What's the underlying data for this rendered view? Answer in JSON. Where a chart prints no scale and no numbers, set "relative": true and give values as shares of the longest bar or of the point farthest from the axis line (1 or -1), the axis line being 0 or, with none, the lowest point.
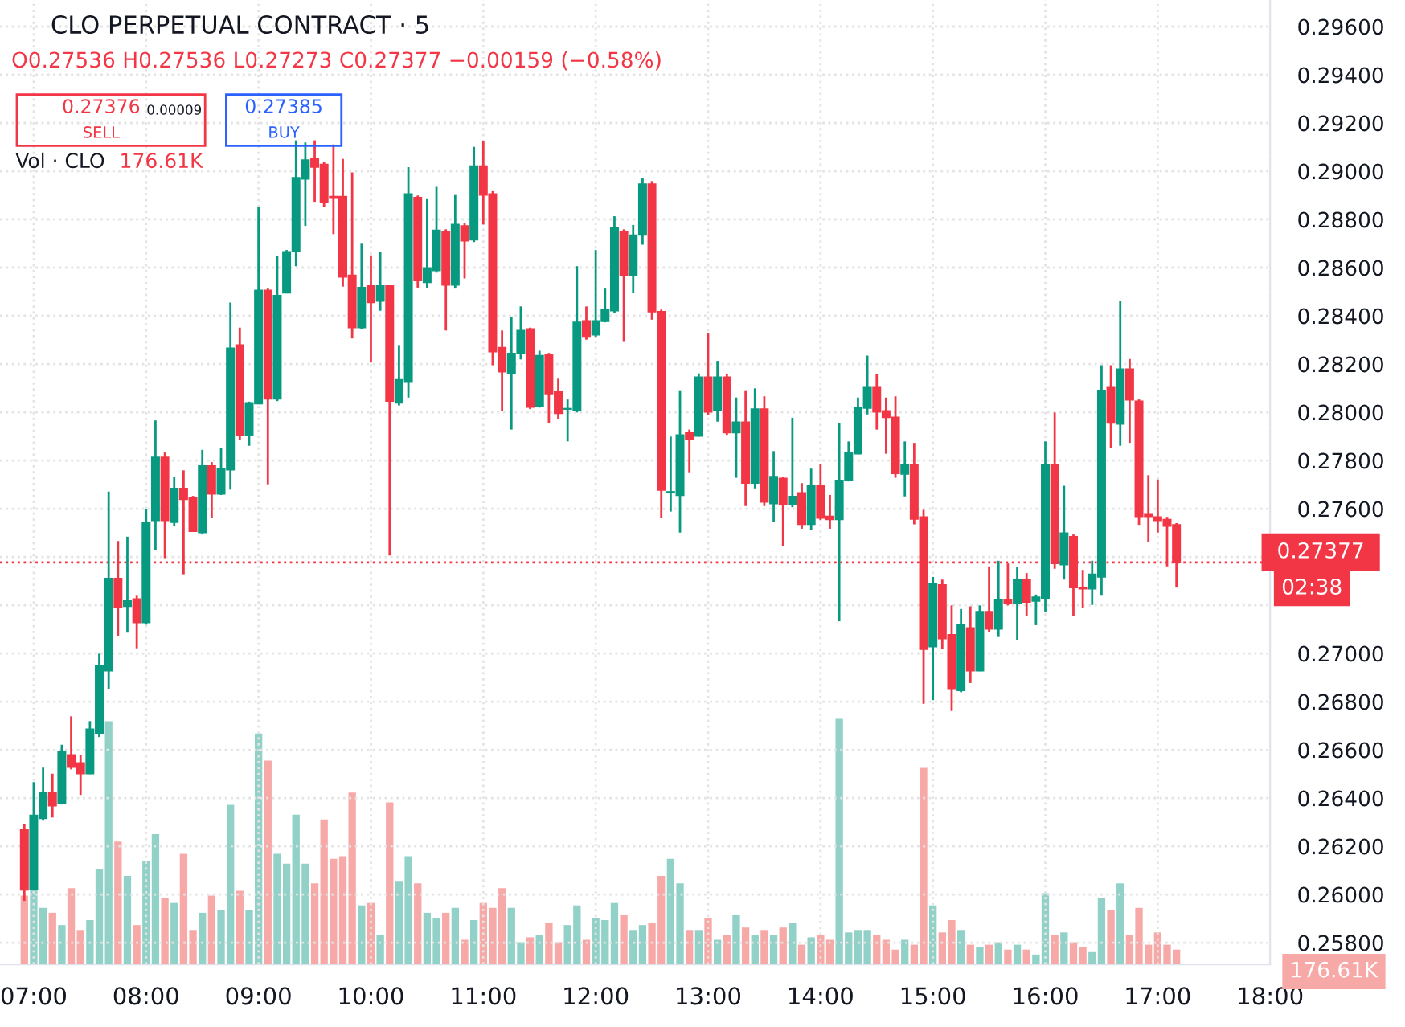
{
  "chart_data": [
    {
      "type": "candlestick",
      "title": "CLO PERPETUAL CONTRACT · 5",
      "subtitle": "O0.27536 H0.27536 L0.27273 C0.27377 −0.00159 (−0.58%)",
      "annotations": [
        "0.27376",
        "SELL",
        "0.00009",
        "0.27385",
        "BUY",
        "Vol · CLO",
        "176.61K",
        "02:38",
        "176.61K"
      ],
      "x": [
        6.9167,
        7,
        7.0833,
        7.1667,
        7.25,
        7.3333,
        7.4167,
        7.5,
        7.5833,
        7.6667,
        7.75,
        7.8333,
        7.9167,
        8,
        8.0833,
        8.1667,
        8.25,
        8.3333,
        8.4167,
        8.5,
        8.5833,
        8.6667,
        8.75,
        8.8333,
        8.9167,
        9,
        9.0833,
        9.1667,
        9.25,
        9.3333,
        9.4167,
        9.5,
        9.5833,
        9.6667,
        9.75,
        9.8333,
        9.9167,
        10,
        10.0833,
        10.1667,
        10.25,
        10.3333,
        10.4167,
        10.5,
        10.5833,
        10.6667,
        10.75,
        10.8333,
        10.9167,
        11,
        11.0833,
        11.1667,
        11.25,
        11.3333,
        11.4167,
        11.5,
        11.5833,
        11.6667,
        11.75,
        11.8333,
        11.9167,
        12,
        12.0833,
        12.1667,
        12.25,
        12.3333,
        12.4167,
        12.5,
        12.5833,
        12.6667,
        12.75,
        12.8333,
        12.9167,
        13,
        13.0833,
        13.1667,
        13.25,
        13.3333,
        13.4167,
        13.5,
        13.5833,
        13.6667,
        13.75,
        13.8333,
        13.9167,
        14,
        14.0833,
        14.1667,
        14.25,
        14.3333,
        14.4167,
        14.5,
        14.5833,
        14.6667,
        14.75,
        14.8333,
        14.9167,
        15,
        15.0833,
        15.1667,
        15.25,
        15.3333,
        15.4167,
        15.5,
        15.5833,
        15.6667,
        15.75,
        15.8333,
        15.9167,
        16,
        16.0833,
        16.1667,
        16.25,
        16.3333,
        16.4167,
        16.5,
        16.5833,
        16.6667,
        16.75,
        16.8333,
        16.9167,
        17,
        17.0833,
        17.1667
      ],
      "ohlc": [
        [
          0.26268,
          0.26293,
          0.25973,
          0.26019
        ],
        [
          0.26021,
          0.26466,
          0.26019,
          0.26328
        ],
        [
          0.26315,
          0.26526,
          0.26306,
          0.26421
        ],
        [
          0.26421,
          0.26501,
          0.26319,
          0.26368
        ],
        [
          0.26379,
          0.26621,
          0.26373,
          0.26593
        ],
        [
          0.26579,
          0.26739,
          0.26519,
          0.26528
        ],
        [
          0.26546,
          0.26579,
          0.26413,
          0.26501
        ],
        [
          0.26501,
          0.26719,
          0.26499,
          0.26686
        ],
        [
          0.26666,
          0.26999,
          0.26653,
          0.26951
        ],
        [
          0.26928,
          0.27671,
          0.26851,
          0.27311
        ],
        [
          0.27311,
          0.27466,
          0.27073,
          0.27191
        ],
        [
          0.27195,
          0.27484,
          0.27086,
          0.27217
        ],
        [
          0.27226,
          0.27239,
          0.27021,
          0.27128
        ],
        [
          0.27128,
          0.27599,
          0.27119,
          0.27544
        ],
        [
          0.27551,
          0.27966,
          0.27428,
          0.27813
        ],
        [
          0.27813,
          0.27833,
          0.27395,
          0.27551
        ],
        [
          0.27544,
          0.27733,
          0.27528,
          0.27684
        ],
        [
          0.27684,
          0.27759,
          0.27328,
          0.27639
        ],
        [
          0.27644,
          0.27653,
          0.27506,
          0.27506
        ],
        [
          0.27501,
          0.27844,
          0.27493,
          0.27777
        ],
        [
          0.27777,
          0.27793,
          0.27561,
          0.27661
        ],
        [
          0.27661,
          0.27851,
          0.27657,
          0.27766
        ],
        [
          0.27761,
          0.28455,
          0.27679,
          0.28266
        ],
        [
          0.28279,
          0.28351,
          0.27884,
          0.27906
        ],
        [
          0.27906,
          0.28044,
          0.27861,
          0.28039
        ],
        [
          0.28035,
          0.28851,
          0.28033,
          0.28506
        ],
        [
          0.28506,
          0.28513,
          0.27701,
          0.28055
        ],
        [
          0.28055,
          0.28648,
          0.28046,
          0.28484
        ],
        [
          0.28495,
          0.28673,
          0.28493,
          0.28666
        ],
        [
          0.28666,
          0.29128,
          0.28606,
          0.28973
        ],
        [
          0.28968,
          0.29119,
          0.28773,
          0.29046
        ],
        [
          0.29051,
          0.29128,
          0.28873,
          0.29017
        ],
        [
          0.29028,
          0.29039,
          0.28851,
          0.28873
        ],
        [
          0.28895,
          0.29111,
          0.28739,
          0.28888
        ],
        [
          0.28895,
          0.29051,
          0.28521,
          0.28561
        ],
        [
          0.28568,
          0.28995,
          0.28306,
          0.28351
        ],
        [
          0.28351,
          0.28699,
          0.28346,
          0.28517
        ],
        [
          0.28524,
          0.28651,
          0.28206,
          0.28455
        ],
        [
          0.28461,
          0.28666,
          0.28421,
          0.28524
        ],
        [
          0.28524,
          0.28526,
          0.27406,
          0.28046
        ],
        [
          0.28039,
          0.28279,
          0.28028,
          0.28135
        ],
        [
          0.28128,
          0.29017,
          0.28061,
          0.28906
        ],
        [
          0.28891,
          0.28899,
          0.28517,
          0.28546
        ],
        [
          0.28539,
          0.28884,
          0.28515,
          0.28599
        ],
        [
          0.28588,
          0.28935,
          0.28579,
          0.28755
        ],
        [
          0.28751,
          0.28759,
          0.28339,
          0.28528
        ],
        [
          0.28528,
          0.28901,
          0.28513,
          0.28779
        ],
        [
          0.28773,
          0.28784,
          0.28555,
          0.28711
        ],
        [
          0.28715,
          0.29101,
          0.28706,
          0.29021
        ],
        [
          0.29021,
          0.29124,
          0.28779,
          0.28901
        ],
        [
          0.28906,
          0.28917,
          0.28195,
          0.28251
        ],
        [
          0.28268,
          0.28339,
          0.28006,
          0.28168
        ],
        [
          0.28161,
          0.28395,
          0.27928,
          0.28244
        ],
        [
          0.28244,
          0.28439,
          0.28219,
          0.28339
        ],
        [
          0.28346,
          0.28351,
          0.28013,
          0.28021
        ],
        [
          0.28024,
          0.28255,
          0.28019,
          0.28235
        ],
        [
          0.28239,
          0.28246,
          0.27955,
          0.28077
        ],
        [
          0.28084,
          0.28139,
          0.27973,
          0.27995
        ],
        [
          0.28013,
          0.28053,
          0.27879,
          0.28015
        ],
        [
          0.28006,
          0.28606,
          0.27999,
          0.28373
        ],
        [
          0.28379,
          0.28439,
          0.28301,
          0.28315
        ],
        [
          0.28321,
          0.28673,
          0.28313,
          0.28379
        ],
        [
          0.28377,
          0.28513,
          0.28373,
          0.28426
        ],
        [
          0.28421,
          0.28813,
          0.28413,
          0.28766
        ],
        [
          0.28751,
          0.28759,
          0.28295,
          0.28568
        ],
        [
          0.28568,
          0.28777,
          0.28495,
          0.28735
        ],
        [
          0.28735,
          0.28973,
          0.28695,
          0.28946
        ],
        [
          0.28946,
          0.28959,
          0.28384,
          0.28417
        ],
        [
          0.28417,
          0.28426,
          0.27561,
          0.27677
        ],
        [
          0.27666,
          0.27899,
          0.27588,
          0.2767
        ],
        [
          0.27655,
          0.28091,
          0.27501,
          0.27906
        ],
        [
          0.27917,
          0.27928,
          0.27751,
          0.27888
        ],
        [
          0.27901,
          0.28161,
          0.27899,
          0.28146
        ],
        [
          0.28146,
          0.28328,
          0.27988,
          0.28001
        ],
        [
          0.28008,
          0.28213,
          0.27961,
          0.28146
        ],
        [
          0.28146,
          0.28157,
          0.27906,
          0.27915
        ],
        [
          0.27915,
          0.28061,
          0.27728,
          0.27959
        ],
        [
          0.27959,
          0.28091,
          0.27611,
          0.27706
        ],
        [
          0.27706,
          0.28099,
          0.27684,
          0.28013
        ],
        [
          0.28013,
          0.28066,
          0.27611,
          0.27628
        ],
        [
          0.27621,
          0.27839,
          0.27544,
          0.27733
        ],
        [
          0.27726,
          0.27733,
          0.27444,
          0.27617
        ],
        [
          0.27617,
          0.27977,
          0.27606,
          0.27651
        ],
        [
          0.27666,
          0.27706,
          0.27517,
          0.27535
        ],
        [
          0.27535,
          0.27766,
          0.27511,
          0.27695
        ],
        [
          0.27695,
          0.27784,
          0.27553,
          0.27561
        ],
        [
          0.27568,
          0.27657,
          0.27517,
          0.27555
        ],
        [
          0.27555,
          0.27955,
          0.27133,
          0.27717
        ],
        [
          0.27717,
          0.27879,
          0.27713,
          0.27833
        ],
        [
          0.27828,
          0.28061,
          0.27826,
          0.28021
        ],
        [
          0.28017,
          0.28235,
          0.27991,
          0.28106
        ],
        [
          0.28106,
          0.28157,
          0.27928,
          0.28001
        ],
        [
          0.28006,
          0.28061,
          0.27828,
          0.27979
        ],
        [
          0.27979,
          0.28066,
          0.27728,
          0.27746
        ],
        [
          0.27744,
          0.27879,
          0.27651,
          0.27784
        ],
        [
          0.27784,
          0.27873,
          0.27535,
          0.27557
        ],
        [
          0.27566,
          0.27595,
          0.26791,
          0.27017
        ],
        [
          0.27028,
          0.27317,
          0.26806,
          0.27291
        ],
        [
          0.27284,
          0.27306,
          0.27017,
          0.27061
        ],
        [
          0.27077,
          0.27199,
          0.26761,
          0.26851
        ],
        [
          0.26846,
          0.27184,
          0.26839,
          0.27117
        ],
        [
          0.27106,
          0.27195,
          0.26877,
          0.26928
        ],
        [
          0.26928,
          0.27199,
          0.26926,
          0.27173
        ],
        [
          0.27173,
          0.27361,
          0.27088,
          0.27101
        ],
        [
          0.27101,
          0.27384,
          0.27068,
          0.27224
        ],
        [
          0.27224,
          0.27373,
          0.27199,
          0.27208
        ],
        [
          0.27208,
          0.27357,
          0.27055,
          0.27306
        ],
        [
          0.27306,
          0.27333,
          0.27155,
          0.27213
        ],
        [
          0.27217,
          0.27244,
          0.27117,
          0.27233
        ],
        [
          0.27228,
          0.27879,
          0.27173,
          0.27784
        ],
        [
          0.27784,
          0.27999,
          0.27351,
          0.27373
        ],
        [
          0.27368,
          0.27695,
          0.27306,
          0.27499
        ],
        [
          0.27484,
          0.27493,
          0.27155,
          0.27273
        ],
        [
          0.27273,
          0.27346,
          0.27188,
          0.27268
        ],
        [
          0.27268,
          0.27384,
          0.27201,
          0.27328
        ],
        [
          0.27317,
          0.28195,
          0.27239,
          0.28091
        ],
        [
          0.28106,
          0.28195,
          0.27851,
          0.27955
        ],
        [
          0.27951,
          0.28461,
          0.27861,
          0.28179
        ],
        [
          0.28179,
          0.28221,
          0.27873,
          0.28051
        ],
        [
          0.28046,
          0.28053,
          0.27533,
          0.27568
        ],
        [
          0.27579,
          0.27739,
          0.27461,
          0.27568
        ],
        [
          0.27566,
          0.27721,
          0.27501,
          0.27551
        ],
        [
          0.27555,
          0.27566,
          0.27361,
          0.27528
        ],
        [
          0.27533,
          0.2754,
          0.27273,
          0.27377
        ]
      ],
      "colors": [
        "#f23645",
        "#089981",
        "#089981",
        "#f23645",
        "#089981",
        "#f23645",
        "#f23645",
        "#089981",
        "#089981",
        "#089981",
        "#f23645",
        "#089981",
        "#f23645",
        "#089981",
        "#089981",
        "#f23645",
        "#089981",
        "#f23645",
        "#f23645",
        "#089981",
        "#f23645",
        "#089981",
        "#089981",
        "#f23645",
        "#089981",
        "#089981",
        "#f23645",
        "#089981",
        "#089981",
        "#089981",
        "#089981",
        "#f23645",
        "#f23645",
        "#f23645",
        "#f23645",
        "#f23645",
        "#089981",
        "#f23645",
        "#089981",
        "#f23645",
        "#089981",
        "#089981",
        "#f23645",
        "#089981",
        "#089981",
        "#f23645",
        "#089981",
        "#f23645",
        "#089981",
        "#f23645",
        "#f23645",
        "#f23645",
        "#089981",
        "#089981",
        "#f23645",
        "#089981",
        "#f23645",
        "#f23645",
        "#089981",
        "#089981",
        "#f23645",
        "#089981",
        "#089981",
        "#089981",
        "#f23645",
        "#089981",
        "#089981",
        "#f23645",
        "#f23645",
        "#089981",
        "#089981",
        "#f23645",
        "#089981",
        "#f23645",
        "#089981",
        "#f23645",
        "#089981",
        "#f23645",
        "#089981",
        "#f23645",
        "#089981",
        "#f23645",
        "#089981",
        "#f23645",
        "#089981",
        "#f23645",
        "#f23645",
        "#089981",
        "#089981",
        "#089981",
        "#089981",
        "#f23645",
        "#f23645",
        "#f23645",
        "#089981",
        "#f23645",
        "#f23645",
        "#089981",
        "#f23645",
        "#f23645",
        "#089981",
        "#f23645",
        "#089981",
        "#f23645",
        "#089981",
        "#f23645",
        "#089981",
        "#f23645",
        "#089981",
        "#089981",
        "#f23645",
        "#089981",
        "#f23645",
        "#f23645",
        "#089981",
        "#089981",
        "#f23645",
        "#089981",
        "#f23645",
        "#f23645",
        "#f23645",
        "#f23645",
        "#f23645",
        "#f23645"
      ],
      "xlim": [
        6.7,
        18.0
      ],
      "xticks": [
        {
          "value": 7,
          "label": "07:00"
        },
        {
          "value": 8,
          "label": "08:00"
        },
        {
          "value": 9,
          "label": "09:00"
        },
        {
          "value": 10,
          "label": "10:00"
        },
        {
          "value": 11,
          "label": "11:00"
        },
        {
          "value": 12,
          "label": "12:00"
        },
        {
          "value": 13,
          "label": "13:00"
        },
        {
          "value": 14,
          "label": "14:00"
        },
        {
          "value": 15,
          "label": "15:00"
        },
        {
          "value": 16,
          "label": "16:00"
        },
        {
          "value": 17,
          "label": "17:00"
        },
        {
          "value": 18,
          "label": "18:00"
        }
      ],
      "ylim": [
        0.2571,
        0.2971
      ],
      "yticks": [
        {
          "value": 0.258,
          "label": "0.25800"
        },
        {
          "value": 0.26,
          "label": "0.26000"
        },
        {
          "value": 0.262,
          "label": "0.26200"
        },
        {
          "value": 0.264,
          "label": "0.26400"
        },
        {
          "value": 0.266,
          "label": "0.26600"
        },
        {
          "value": 0.268,
          "label": "0.26800"
        },
        {
          "value": 0.27,
          "label": "0.27000"
        },
        {
          "value": 0.272,
          "label": null
        },
        {
          "value": 0.274,
          "label": null
        },
        {
          "value": 0.276,
          "label": "0.27600"
        },
        {
          "value": 0.278,
          "label": "0.27800"
        },
        {
          "value": 0.28,
          "label": "0.28000"
        },
        {
          "value": 0.282,
          "label": "0.28200"
        },
        {
          "value": 0.284,
          "label": "0.28400"
        },
        {
          "value": 0.286,
          "label": "0.28600"
        },
        {
          "value": 0.288,
          "label": "0.28800"
        },
        {
          "value": 0.29,
          "label": "0.29000"
        },
        {
          "value": 0.292,
          "label": "0.29200"
        },
        {
          "value": 0.294,
          "label": "0.29400"
        },
        {
          "value": 0.296,
          "label": "0.29600"
        }
      ],
      "ref_lines": [
        {
          "axis": "y",
          "value": 0.27377,
          "label": "0.27377",
          "color": "#f23645",
          "line_style": "dotted"
        }
      ],
      "grid": true
    },
    {
      "type": "bar",
      "relative": true,
      "tick_labels": false,
      "xlim": [
        6.7,
        18.0
      ],
      "x": [
        6.9167,
        7,
        7.0833,
        7.1667,
        7.25,
        7.3333,
        7.4167,
        7.5,
        7.5833,
        7.6667,
        7.75,
        7.8333,
        7.9167,
        8,
        8.0833,
        8.1667,
        8.25,
        8.3333,
        8.4167,
        8.5,
        8.5833,
        8.6667,
        8.75,
        8.8333,
        8.9167,
        9,
        9.0833,
        9.1667,
        9.25,
        9.3333,
        9.4167,
        9.5,
        9.5833,
        9.6667,
        9.75,
        9.8333,
        9.9167,
        10,
        10.0833,
        10.1667,
        10.25,
        10.3333,
        10.4167,
        10.5,
        10.5833,
        10.6667,
        10.75,
        10.8333,
        10.9167,
        11,
        11.0833,
        11.1667,
        11.25,
        11.3333,
        11.4167,
        11.5,
        11.5833,
        11.6667,
        11.75,
        11.8333,
        11.9167,
        12,
        12.0833,
        12.1667,
        12.25,
        12.3333,
        12.4167,
        12.5,
        12.5833,
        12.6667,
        12.75,
        12.8333,
        12.9167,
        13,
        13.0833,
        13.1667,
        13.25,
        13.3333,
        13.4167,
        13.5,
        13.5833,
        13.6667,
        13.75,
        13.8333,
        13.9167,
        14,
        14.0833,
        14.1667,
        14.25,
        14.3333,
        14.4167,
        14.5,
        14.5833,
        14.6667,
        14.75,
        14.8333,
        14.9167,
        15,
        15.0833,
        15.1667,
        15.25,
        15.3333,
        15.4167,
        15.5,
        15.5833,
        15.6667,
        15.75,
        15.8333,
        15.9167,
        16,
        16.0833,
        16.1667,
        16.25,
        16.3333,
        16.4167,
        16.5,
        16.5833,
        16.6667,
        16.75,
        16.8333,
        16.9167,
        17,
        17.0833,
        17.1667
      ],
      "values": [
        0.28,
        0.31,
        0.23,
        0.21,
        0.16,
        0.31,
        0.14,
        0.18,
        0.39,
        0.99,
        0.5,
        0.36,
        0.16,
        0.42,
        0.53,
        0.27,
        0.25,
        0.45,
        0.14,
        0.21,
        0.28,
        0.22,
        0.65,
        0.3,
        0.22,
        0.94,
        0.83,
        0.45,
        0.41,
        0.61,
        0.41,
        0.33,
        0.59,
        0.43,
        0.44,
        0.7,
        0.24,
        0.25,
        0.12,
        0.66,
        0.34,
        0.44,
        0.33,
        0.21,
        0.19,
        0.21,
        0.23,
        0.1,
        0.18,
        0.25,
        0.23,
        0.31,
        0.23,
        0.09,
        0.11,
        0.12,
        0.17,
        0.09,
        0.16,
        0.24,
        0.1,
        0.19,
        0.18,
        0.25,
        0.2,
        0.14,
        0.16,
        0.17,
        0.36,
        0.43,
        0.33,
        0.14,
        0.14,
        0.19,
        0.1,
        0.12,
        0.2,
        0.15,
        0.12,
        0.14,
        0.12,
        0.15,
        0.17,
        0.08,
        0.11,
        0.12,
        0.1,
        1,
        0.13,
        0.14,
        0.14,
        0.12,
        0.1,
        0.06,
        0.1,
        0.08,
        0.8,
        0.24,
        0.13,
        0.18,
        0.14,
        0.08,
        0.07,
        0.08,
        0.09,
        0.06,
        0.08,
        0.06,
        0.04,
        0.29,
        0.12,
        0.13,
        0.09,
        0.07,
        0.05,
        0.27,
        0.22,
        0.33,
        0.12,
        0.23,
        0.08,
        0.13,
        0.08,
        0.06
      ],
      "colors": [
        "#f7a9a7",
        "#91d1c7",
        "#91d1c7",
        "#f7a9a7",
        "#91d1c7",
        "#f7a9a7",
        "#f7a9a7",
        "#91d1c7",
        "#91d1c7",
        "#91d1c7",
        "#f7a9a7",
        "#91d1c7",
        "#f7a9a7",
        "#91d1c7",
        "#91d1c7",
        "#f7a9a7",
        "#91d1c7",
        "#f7a9a7",
        "#f7a9a7",
        "#91d1c7",
        "#f7a9a7",
        "#91d1c7",
        "#91d1c7",
        "#f7a9a7",
        "#91d1c7",
        "#91d1c7",
        "#f7a9a7",
        "#91d1c7",
        "#91d1c7",
        "#91d1c7",
        "#91d1c7",
        "#f7a9a7",
        "#f7a9a7",
        "#f7a9a7",
        "#f7a9a7",
        "#f7a9a7",
        "#91d1c7",
        "#f7a9a7",
        "#91d1c7",
        "#f7a9a7",
        "#91d1c7",
        "#91d1c7",
        "#f7a9a7",
        "#91d1c7",
        "#91d1c7",
        "#f7a9a7",
        "#91d1c7",
        "#f7a9a7",
        "#91d1c7",
        "#f7a9a7",
        "#f7a9a7",
        "#f7a9a7",
        "#91d1c7",
        "#91d1c7",
        "#f7a9a7",
        "#91d1c7",
        "#f7a9a7",
        "#f7a9a7",
        "#91d1c7",
        "#91d1c7",
        "#f7a9a7",
        "#91d1c7",
        "#91d1c7",
        "#91d1c7",
        "#f7a9a7",
        "#91d1c7",
        "#91d1c7",
        "#f7a9a7",
        "#f7a9a7",
        "#91d1c7",
        "#91d1c7",
        "#f7a9a7",
        "#91d1c7",
        "#f7a9a7",
        "#91d1c7",
        "#f7a9a7",
        "#91d1c7",
        "#f7a9a7",
        "#91d1c7",
        "#f7a9a7",
        "#91d1c7",
        "#f7a9a7",
        "#91d1c7",
        "#f7a9a7",
        "#91d1c7",
        "#f7a9a7",
        "#f7a9a7",
        "#91d1c7",
        "#91d1c7",
        "#91d1c7",
        "#91d1c7",
        "#f7a9a7",
        "#f7a9a7",
        "#f7a9a7",
        "#91d1c7",
        "#f7a9a7",
        "#f7a9a7",
        "#91d1c7",
        "#f7a9a7",
        "#f7a9a7",
        "#91d1c7",
        "#f7a9a7",
        "#91d1c7",
        "#f7a9a7",
        "#91d1c7",
        "#f7a9a7",
        "#91d1c7",
        "#f7a9a7",
        "#91d1c7",
        "#91d1c7",
        "#f7a9a7",
        "#91d1c7",
        "#f7a9a7",
        "#f7a9a7",
        "#91d1c7",
        "#91d1c7",
        "#f7a9a7",
        "#91d1c7",
        "#f7a9a7",
        "#f7a9a7",
        "#f7a9a7",
        "#f7a9a7",
        "#f7a9a7",
        "#f7a9a7"
      ]
    }
  ]
}
